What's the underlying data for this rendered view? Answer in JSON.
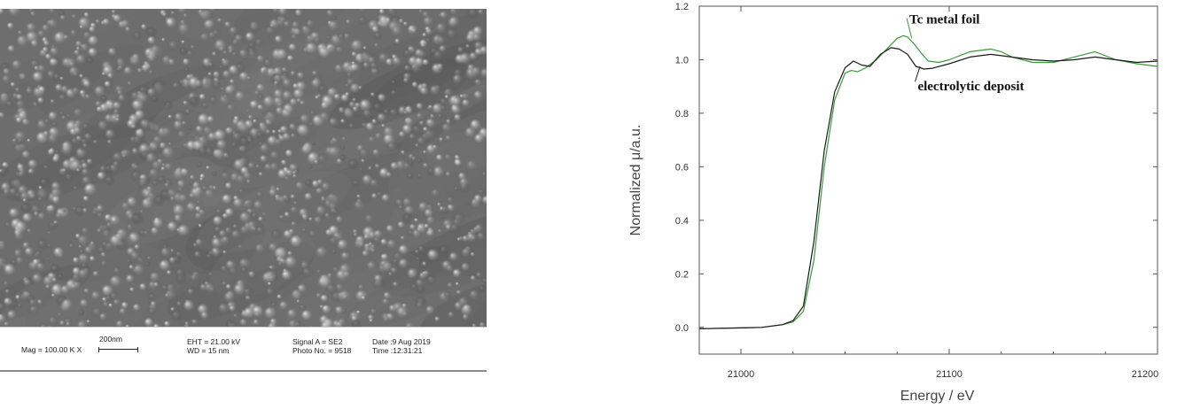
{
  "sem_image": {
    "databar": {
      "scale_label": "200nm",
      "magnification": "Mag = 100.00 K X",
      "eht": "EHT = 21.00 kV",
      "wd": "WD =  15 nm",
      "signal": "Signal A = SE2",
      "photo_no": "Photo No. = 9518",
      "date": "Date :9 Aug 2019",
      "time": "Time :12:31:21"
    }
  },
  "chart_data": {
    "type": "line",
    "title": "",
    "xlabel": "Energy / eV",
    "ylabel": "Normalized μ/a.u.",
    "xlim": [
      20980,
      21200
    ],
    "ylim": [
      -0.1,
      1.2
    ],
    "xticks": [
      21000,
      21100,
      21200
    ],
    "yticks": [
      0.0,
      0.2,
      0.4,
      0.6,
      0.8,
      1.0,
      1.2
    ],
    "xtick_labels": [
      "21000",
      "21100",
      "21200"
    ],
    "ytick_labels": [
      "0.0",
      "0.2",
      "0.4",
      "0.6",
      "0.8",
      "1.0",
      "1.2"
    ],
    "grid": false,
    "legend": "none",
    "series": [
      {
        "name": "Tc metal foil",
        "color": "#3a9a3a",
        "x": [
          20980,
          21000,
          21010,
          21020,
          21025,
          21030,
          21035,
          21040,
          21045,
          21050,
          21053,
          21056,
          21060,
          21065,
          21070,
          21075,
          21078,
          21080,
          21083,
          21087,
          21090,
          21095,
          21100,
          21110,
          21120,
          21125,
          21130,
          21140,
          21150,
          21160,
          21170,
          21180,
          21190,
          21200
        ],
        "y": [
          -0.005,
          -0.002,
          0.0,
          0.01,
          0.02,
          0.06,
          0.25,
          0.6,
          0.85,
          0.95,
          0.96,
          0.955,
          0.97,
          1.0,
          1.04,
          1.08,
          1.09,
          1.085,
          1.06,
          1.02,
          0.995,
          0.99,
          1.0,
          1.03,
          1.04,
          1.03,
          1.01,
          0.99,
          0.99,
          1.01,
          1.03,
          1.0,
          0.985,
          0.975
        ]
      },
      {
        "name": "electrolytic deposit",
        "color": "#1a1a1a",
        "x": [
          20980,
          21000,
          21010,
          21020,
          21025,
          21030,
          21035,
          21040,
          21045,
          21050,
          21054,
          21058,
          21062,
          21067,
          21072,
          21076,
          21080,
          21084,
          21088,
          21092,
          21100,
          21110,
          21120,
          21130,
          21140,
          21150,
          21160,
          21170,
          21180,
          21190,
          21200
        ],
        "y": [
          -0.005,
          -0.002,
          0.0,
          0.01,
          0.025,
          0.08,
          0.32,
          0.66,
          0.88,
          0.97,
          0.995,
          0.98,
          0.975,
          1.02,
          1.045,
          1.04,
          1.02,
          0.975,
          0.965,
          0.968,
          0.985,
          1.01,
          1.02,
          1.01,
          1.0,
          0.995,
          1.0,
          1.01,
          1.0,
          0.99,
          0.995
        ]
      }
    ],
    "annotations": [
      {
        "text": "Tc metal foil",
        "x": 21083,
        "y": 1.135,
        "pointer_to": [
          21082,
          1.08
        ]
      },
      {
        "text": "electrolytic deposit",
        "x": 21087,
        "y": 0.885,
        "pointer_to": [
          21086,
          0.975
        ]
      }
    ]
  }
}
